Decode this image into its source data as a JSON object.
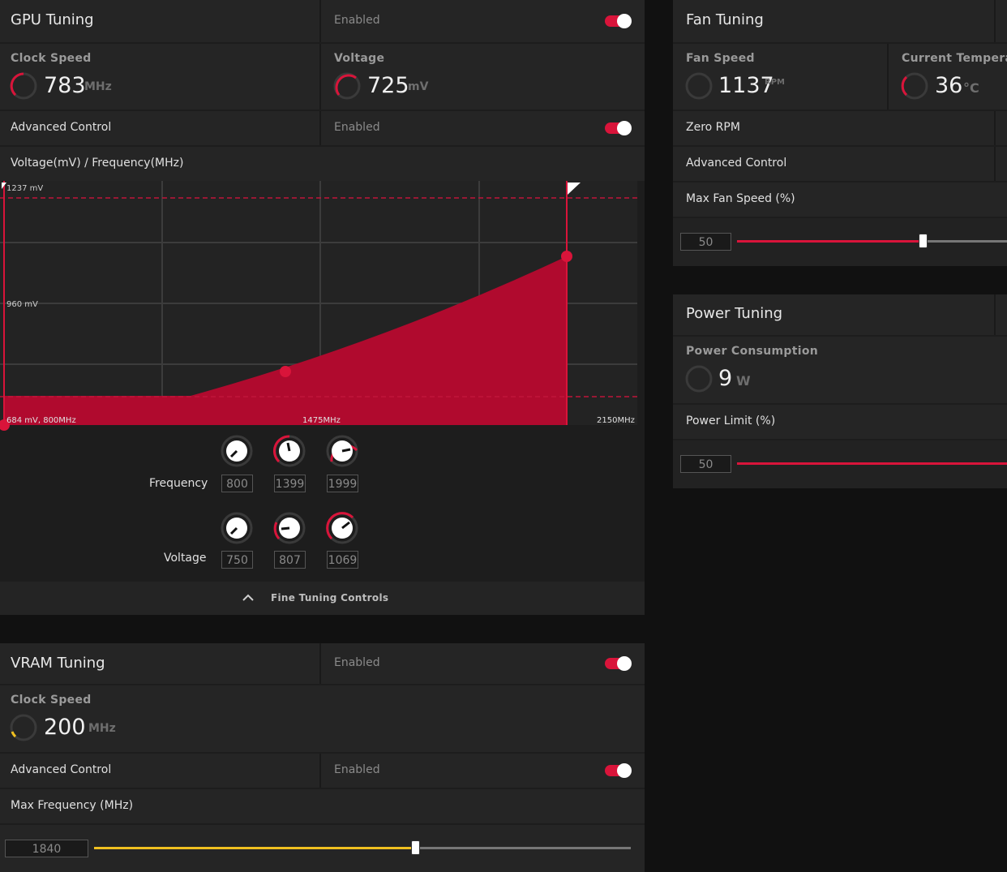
{
  "gpu": {
    "title": "GPU Tuning",
    "enabled_label": "Enabled",
    "clock": {
      "label": "Clock Speed",
      "value": "783",
      "unit": "MHz"
    },
    "voltage": {
      "label": "Voltage",
      "value": "725",
      "unit": "mV"
    },
    "advanced": {
      "label": "Advanced Control",
      "enabled_label": "Enabled"
    },
    "curve_header": "Voltage(mV) / Frequency(MHz)",
    "chart": {
      "label_top": "1237 mV",
      "label_mid": "960 mV",
      "label_bottom_left": "684 mV, 800MHz",
      "label_bottom_mid": "1475MHz",
      "label_bottom_right": "2150MHz",
      "color": "#b00a2e"
    },
    "frequency_label": "Frequency",
    "frequency_values": [
      "800",
      "1399",
      "1999"
    ],
    "voltage_label": "Voltage",
    "voltage_values": [
      "750",
      "807",
      "1069"
    ],
    "fine_tuning_label": "Fine Tuning Controls"
  },
  "vram": {
    "title": "VRAM Tuning",
    "enabled_label": "Enabled",
    "clock": {
      "label": "Clock Speed",
      "value": "200",
      "unit": "MHz"
    },
    "advanced": {
      "label": "Advanced Control",
      "enabled_label": "Enabled"
    },
    "max_freq_label": "Max Frequency (MHz)",
    "max_freq_value": "1840",
    "slider_fraction": 0.6,
    "slider_color": "#f0c020"
  },
  "fan": {
    "title": "Fan Tuning",
    "fan_speed": {
      "label": "Fan Speed",
      "value": "1137",
      "unit": "RPM"
    },
    "temperature": {
      "label": "Current Temperatu",
      "value": "36",
      "unit": "°C"
    },
    "zero_rpm_label": "Zero RPM",
    "advanced_label": "Advanced Control",
    "max_fan_label": "Max Fan Speed (%)",
    "max_fan_value": "50",
    "slider_fraction": 0.5
  },
  "power": {
    "title": "Power Tuning",
    "consumption": {
      "label": "Power Consumption",
      "value": "9",
      "unit": "W"
    },
    "limit_label": "Power Limit (%)",
    "limit_value": "50"
  },
  "accent_color": "#d9143a"
}
